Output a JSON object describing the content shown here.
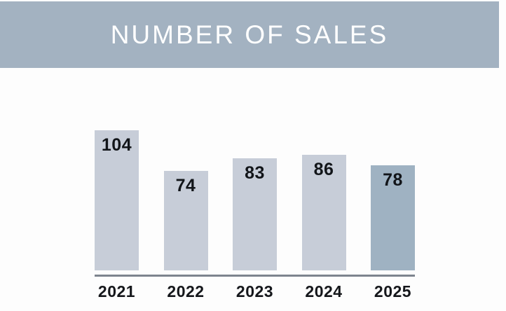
{
  "header": {
    "title": "NUMBER OF SALES",
    "bg_color": "#a3b2c1",
    "text_color": "#ffffff"
  },
  "chart_data": {
    "type": "bar",
    "title": "NUMBER OF SALES",
    "categories": [
      "2021",
      "2022",
      "2023",
      "2024",
      "2025"
    ],
    "values": [
      104,
      74,
      83,
      86,
      78
    ],
    "xlabel": "",
    "ylabel": "",
    "ylim": [
      0,
      110
    ],
    "grid": false,
    "legend": false,
    "value_labels": "inside-top",
    "bar_color": "#c7cdd8",
    "highlight_bar_color": "#9fb2c2",
    "highlight_index": 4,
    "axis_line_color": "#7d848e",
    "label_color": "#15171b",
    "background_color": "#fdfdfd"
  }
}
